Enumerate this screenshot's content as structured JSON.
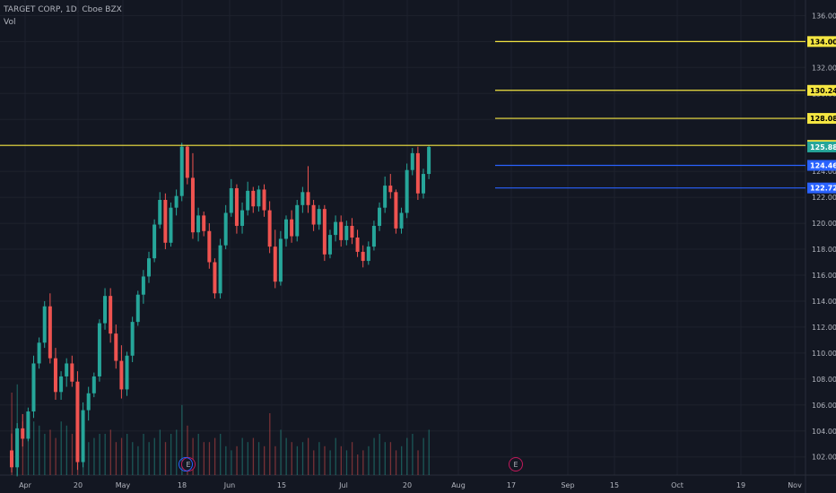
{
  "header": {
    "symbol": "TARGET CORP, 1D, Cboe BZX",
    "volume_label": "Vol"
  },
  "colors": {
    "background": "#131722",
    "up": "#26a69a",
    "down": "#ef5350",
    "yellow": "#f5e642",
    "blue": "#2962ff",
    "grid": "#1e222d",
    "axis_text": "#b2b5be"
  },
  "chart_data": {
    "type": "candlestick",
    "y_range": [
      100.6,
      137.2
    ],
    "y_ticks": [
      "102.00",
      "104.00",
      "106.00",
      "108.00",
      "110.00",
      "112.00",
      "114.00",
      "116.00",
      "118.00",
      "120.00",
      "122.00",
      "124.00",
      "126.00",
      "128.00",
      "130.00",
      "132.00",
      "134.00",
      "136.00"
    ],
    "x_labels": [
      "Apr",
      "20",
      "May",
      "18",
      "Jun",
      "15",
      "Jul",
      "20",
      "Aug",
      "17",
      "Sep",
      "15",
      "Oct",
      "19",
      "Nov"
    ],
    "horizontal_lines": [
      {
        "price": 134.0,
        "label": "134.00",
        "color": "yellow",
        "extent": "partial"
      },
      {
        "price": 130.24,
        "label": "130.24",
        "color": "yellow",
        "extent": "partial"
      },
      {
        "price": 128.08,
        "label": "128.08",
        "color": "yellow",
        "extent": "partial"
      },
      {
        "price": 126.0,
        "label": "126.00",
        "color": "yellow",
        "extent": "full"
      },
      {
        "price": 124.46,
        "label": "124.46",
        "color": "blue",
        "extent": "partial"
      },
      {
        "price": 122.72,
        "label": "122.72",
        "color": "blue",
        "extent": "partial"
      }
    ],
    "current_price": {
      "price": 125.88,
      "label": "125.88"
    },
    "earnings_markers": [
      "E",
      "E"
    ],
    "candles": [
      [
        102.5,
        103.8,
        100.8,
        101.2
      ],
      [
        101.2,
        104.6,
        100.5,
        104.2
      ],
      [
        104.2,
        105.3,
        102.8,
        103.4
      ],
      [
        103.4,
        105.8,
        103.2,
        105.5
      ],
      [
        105.5,
        109.8,
        105.0,
        109.2
      ],
      [
        109.2,
        111.2,
        108.8,
        110.8
      ],
      [
        110.8,
        114.0,
        110.4,
        113.6
      ],
      [
        113.6,
        114.6,
        109.2,
        109.6
      ],
      [
        109.6,
        110.4,
        106.4,
        107.0
      ],
      [
        107.0,
        108.6,
        106.4,
        108.2
      ],
      [
        108.2,
        109.6,
        107.4,
        109.2
      ],
      [
        109.2,
        109.8,
        107.4,
        107.8
      ],
      [
        107.8,
        108.6,
        101.0,
        101.6
      ],
      [
        101.6,
        106.2,
        101.2,
        105.6
      ],
      [
        105.6,
        107.4,
        104.8,
        106.9
      ],
      [
        106.9,
        108.5,
        106.6,
        108.2
      ],
      [
        108.2,
        112.6,
        107.8,
        112.3
      ],
      [
        112.3,
        115.0,
        111.8,
        114.4
      ],
      [
        114.4,
        115.0,
        110.8,
        111.5
      ],
      [
        111.5,
        112.2,
        108.8,
        109.4
      ],
      [
        109.4,
        110.6,
        106.5,
        107.2
      ],
      [
        107.2,
        110.1,
        106.7,
        109.8
      ],
      [
        109.8,
        112.8,
        109.3,
        112.4
      ],
      [
        112.4,
        114.8,
        112.1,
        114.5
      ],
      [
        114.5,
        116.4,
        113.8,
        115.9
      ],
      [
        115.9,
        117.8,
        115.4,
        117.3
      ],
      [
        117.3,
        120.3,
        117.0,
        119.9
      ],
      [
        119.9,
        122.4,
        119.6,
        121.8
      ],
      [
        121.8,
        122.3,
        118.0,
        118.5
      ],
      [
        118.5,
        121.6,
        118.2,
        121.2
      ],
      [
        121.2,
        122.6,
        120.6,
        122.1
      ],
      [
        122.1,
        126.2,
        121.7,
        125.9
      ],
      [
        125.9,
        126.0,
        123.0,
        123.5
      ],
      [
        123.5,
        125.4,
        118.8,
        119.3
      ],
      [
        119.3,
        121.2,
        118.6,
        120.6
      ],
      [
        120.6,
        120.9,
        119.0,
        119.4
      ],
      [
        119.4,
        120.0,
        116.5,
        117.0
      ],
      [
        117.0,
        117.3,
        114.2,
        114.6
      ],
      [
        114.6,
        118.8,
        114.2,
        118.3
      ],
      [
        118.3,
        121.4,
        118.0,
        120.8
      ],
      [
        120.8,
        123.4,
        120.5,
        122.7
      ],
      [
        122.7,
        123.0,
        119.2,
        119.8
      ],
      [
        119.8,
        121.6,
        119.2,
        121.0
      ],
      [
        121.0,
        123.2,
        120.6,
        122.5
      ],
      [
        122.5,
        122.8,
        120.8,
        121.3
      ],
      [
        121.3,
        122.9,
        120.9,
        122.6
      ],
      [
        122.6,
        123.0,
        120.5,
        121.0
      ],
      [
        121.0,
        121.7,
        117.7,
        118.2
      ],
      [
        118.2,
        119.5,
        115.0,
        115.5
      ],
      [
        115.5,
        119.4,
        115.2,
        118.8
      ],
      [
        118.8,
        120.6,
        118.2,
        120.3
      ],
      [
        120.3,
        121.0,
        118.5,
        119.0
      ],
      [
        119.0,
        121.8,
        118.6,
        121.4
      ],
      [
        121.4,
        122.8,
        120.8,
        122.4
      ],
      [
        122.4,
        124.4,
        120.8,
        121.4
      ],
      [
        121.4,
        121.8,
        119.4,
        119.9
      ],
      [
        119.9,
        121.4,
        119.5,
        121.1
      ],
      [
        121.1,
        121.4,
        117.1,
        117.6
      ],
      [
        117.6,
        119.5,
        117.3,
        119.1
      ],
      [
        119.1,
        120.6,
        118.6,
        120.1
      ],
      [
        120.1,
        120.6,
        118.2,
        118.7
      ],
      [
        118.7,
        120.2,
        118.3,
        119.8
      ],
      [
        119.8,
        120.4,
        118.4,
        118.9
      ],
      [
        118.9,
        119.5,
        117.4,
        117.8
      ],
      [
        117.8,
        118.3,
        116.6,
        117.1
      ],
      [
        117.1,
        118.6,
        116.8,
        118.2
      ],
      [
        118.2,
        120.2,
        117.9,
        119.8
      ],
      [
        119.8,
        121.6,
        119.4,
        121.2
      ],
      [
        121.2,
        123.6,
        120.8,
        122.9
      ],
      [
        122.9,
        123.8,
        121.9,
        122.4
      ],
      [
        122.4,
        122.6,
        119.2,
        119.6
      ],
      [
        119.6,
        121.2,
        119.2,
        120.8
      ],
      [
        120.8,
        124.6,
        120.4,
        124.1
      ],
      [
        124.1,
        125.8,
        123.7,
        125.4
      ],
      [
        125.4,
        125.9,
        121.8,
        122.3
      ],
      [
        122.3,
        124.2,
        121.9,
        123.8
      ],
      [
        123.8,
        126.0,
        123.4,
        125.88
      ]
    ],
    "volumes": [
      20,
      22,
      13,
      14,
      13,
      12,
      10,
      11,
      9,
      13,
      12,
      10,
      13,
      9,
      8,
      9,
      10,
      10,
      11,
      8,
      9,
      10,
      8,
      7,
      10,
      8,
      9,
      11,
      8,
      10,
      11,
      17,
      12,
      9,
      10,
      8,
      8,
      9,
      10,
      7,
      6,
      7,
      9,
      8,
      9,
      8,
      7,
      15,
      7,
      11,
      9,
      8,
      7,
      8,
      9,
      6,
      8,
      7,
      6,
      9,
      7,
      6,
      8,
      5,
      6,
      7,
      9,
      10,
      8,
      8,
      6,
      7,
      9,
      10,
      6,
      9,
      11
    ]
  }
}
